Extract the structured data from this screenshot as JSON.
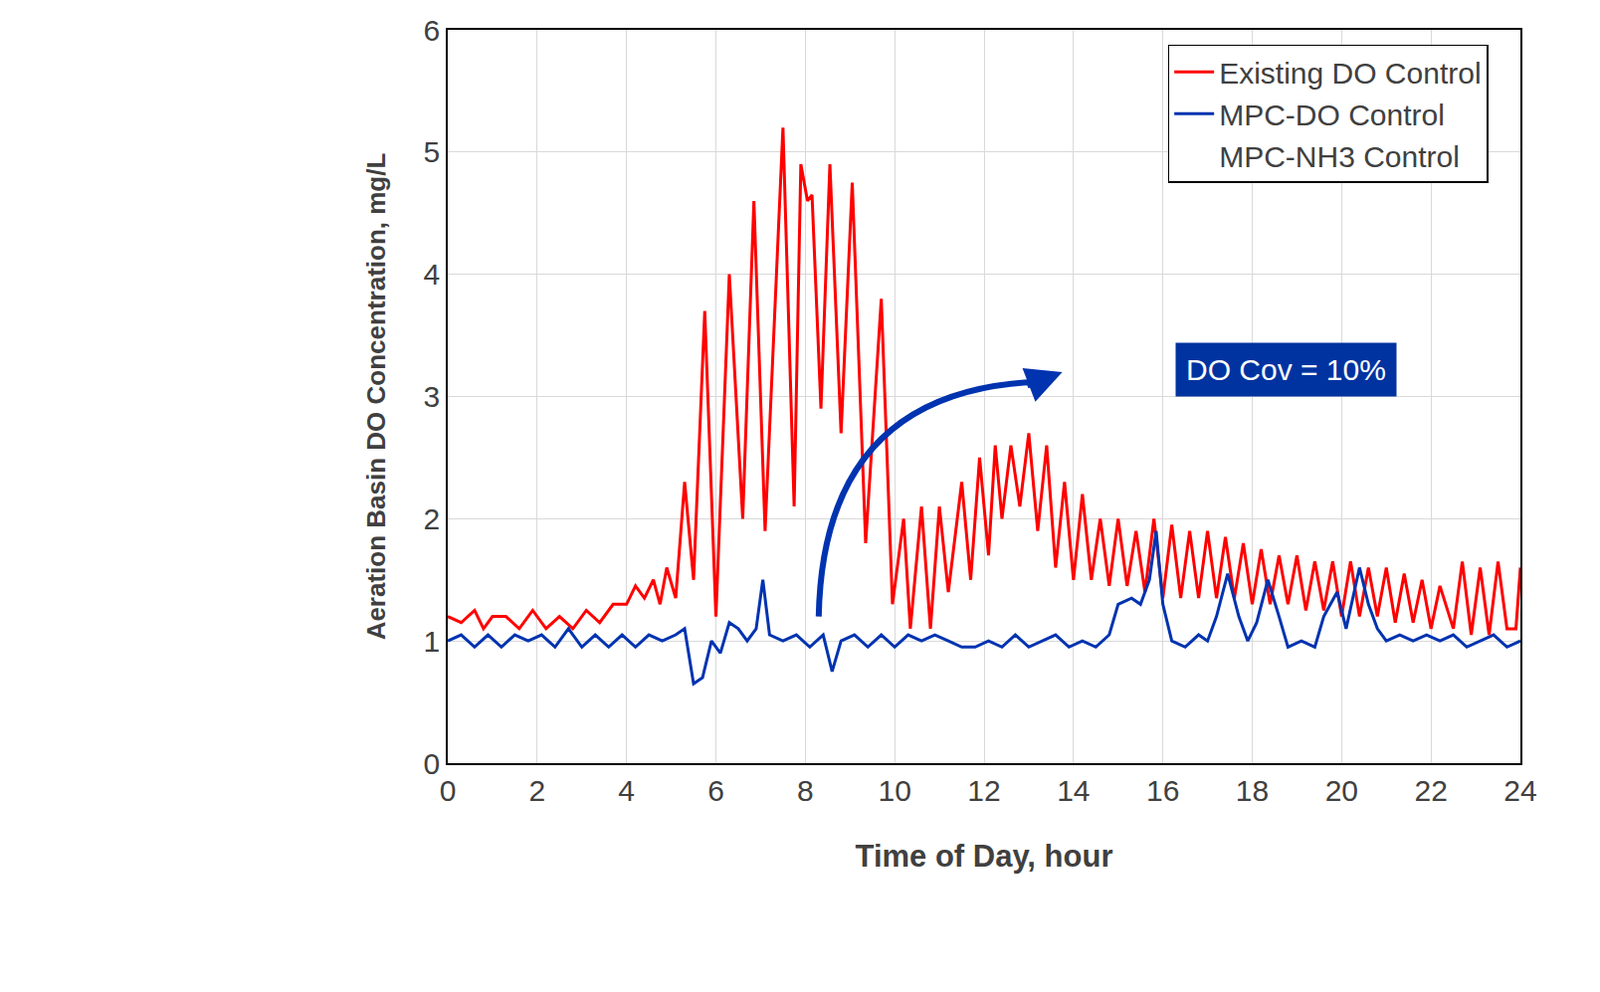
{
  "chart_data": {
    "type": "line",
    "xlabel": "Time of Day, hour",
    "ylabel": "Aeration Basin DO Concentration, mg/L",
    "xlim": [
      0,
      24
    ],
    "xticks": [
      0,
      2,
      4,
      6,
      8,
      10,
      12,
      14,
      16,
      18,
      20,
      22,
      24
    ],
    "ylim": [
      0,
      6
    ],
    "yticks": [
      0,
      1,
      2,
      3,
      4,
      5,
      6
    ],
    "grid": true,
    "legend": "top-right",
    "annotations": [
      {
        "text": "DO Cov = 10%",
        "x": 18.75,
        "y": 3.22
      }
    ],
    "series": [
      {
        "name": "Existing DO Control",
        "color": "#ff0000",
        "x": [
          0,
          0.3,
          0.6,
          0.8,
          1.0,
          1.3,
          1.6,
          1.9,
          2.2,
          2.5,
          2.8,
          3.1,
          3.4,
          3.7,
          4.0,
          4.2,
          4.4,
          4.6,
          4.75,
          4.9,
          5.1,
          5.3,
          5.5,
          5.75,
          6.0,
          6.3,
          6.6,
          6.85,
          7.1,
          7.5,
          7.75,
          7.9,
          8.05,
          8.15,
          8.35,
          8.55,
          8.8,
          9.05,
          9.35,
          9.7,
          9.95,
          10.2,
          10.35,
          10.6,
          10.8,
          11.0,
          11.2,
          11.5,
          11.7,
          11.9,
          12.1,
          12.25,
          12.4,
          12.6,
          12.8,
          13.0,
          13.2,
          13.4,
          13.6,
          13.8,
          14.0,
          14.2,
          14.4,
          14.6,
          14.8,
          15.0,
          15.2,
          15.4,
          15.6,
          15.8,
          16.0,
          16.2,
          16.4,
          16.6,
          16.8,
          17.0,
          17.2,
          17.4,
          17.6,
          17.8,
          18.0,
          18.2,
          18.4,
          18.6,
          18.8,
          19.0,
          19.2,
          19.4,
          19.6,
          19.8,
          20.0,
          20.2,
          20.4,
          20.6,
          20.8,
          21.0,
          21.2,
          21.4,
          21.6,
          21.8,
          22.0,
          22.2,
          22.5,
          22.7,
          22.9,
          23.1,
          23.3,
          23.5,
          23.7,
          23.9,
          24.0
        ],
        "values": [
          1.2,
          1.15,
          1.25,
          1.1,
          1.2,
          1.2,
          1.1,
          1.25,
          1.1,
          1.2,
          1.1,
          1.25,
          1.15,
          1.3,
          1.3,
          1.45,
          1.35,
          1.5,
          1.3,
          1.6,
          1.35,
          2.3,
          1.5,
          3.7,
          1.2,
          4.0,
          2.0,
          4.6,
          1.9,
          5.2,
          2.1,
          4.9,
          4.6,
          4.65,
          2.9,
          4.9,
          2.7,
          4.75,
          1.8,
          3.8,
          1.3,
          2.0,
          1.1,
          2.1,
          1.1,
          2.1,
          1.4,
          2.3,
          1.5,
          2.5,
          1.7,
          2.6,
          2.0,
          2.6,
          2.1,
          2.7,
          1.9,
          2.6,
          1.6,
          2.3,
          1.5,
          2.2,
          1.5,
          2.0,
          1.45,
          2.0,
          1.45,
          1.9,
          1.4,
          2.0,
          1.35,
          1.95,
          1.35,
          1.9,
          1.35,
          1.9,
          1.35,
          1.85,
          1.35,
          1.8,
          1.3,
          1.75,
          1.3,
          1.7,
          1.3,
          1.7,
          1.25,
          1.65,
          1.25,
          1.65,
          1.2,
          1.65,
          1.2,
          1.6,
          1.2,
          1.6,
          1.15,
          1.55,
          1.15,
          1.5,
          1.1,
          1.45,
          1.1,
          1.65,
          1.05,
          1.6,
          1.05,
          1.65,
          1.1,
          1.1,
          1.6
        ]
      },
      {
        "name": "MPC-DO Control",
        "color": "#0033b0",
        "x": [
          0,
          0.3,
          0.6,
          0.9,
          1.2,
          1.5,
          1.8,
          2.1,
          2.4,
          2.7,
          3.0,
          3.3,
          3.6,
          3.9,
          4.2,
          4.5,
          4.8,
          5.1,
          5.3,
          5.5,
          5.7,
          5.9,
          6.1,
          6.3,
          6.5,
          6.7,
          6.9,
          7.05,
          7.2,
          7.5,
          7.8,
          8.1,
          8.4,
          8.6,
          8.8,
          9.1,
          9.4,
          9.7,
          10.0,
          10.3,
          10.6,
          10.9,
          11.2,
          11.5,
          11.8,
          12.1,
          12.4,
          12.7,
          13.0,
          13.3,
          13.6,
          13.9,
          14.2,
          14.5,
          14.8,
          15.0,
          15.3,
          15.5,
          15.7,
          15.85,
          16.0,
          16.2,
          16.5,
          16.8,
          17.0,
          17.2,
          17.45,
          17.7,
          17.9,
          18.1,
          18.35,
          18.6,
          18.8,
          19.1,
          19.4,
          19.6,
          19.9,
          20.1,
          20.4,
          20.6,
          20.8,
          21.0,
          21.3,
          21.6,
          21.9,
          22.2,
          22.5,
          22.8,
          23.1,
          23.4,
          23.7,
          24.0
        ],
        "values": [
          1.0,
          1.05,
          0.95,
          1.05,
          0.95,
          1.05,
          1.0,
          1.05,
          0.95,
          1.1,
          0.95,
          1.05,
          0.95,
          1.05,
          0.95,
          1.05,
          1.0,
          1.05,
          1.1,
          0.65,
          0.7,
          1.0,
          0.9,
          1.15,
          1.1,
          1.0,
          1.1,
          1.5,
          1.05,
          1.0,
          1.05,
          0.95,
          1.05,
          0.75,
          1.0,
          1.05,
          0.95,
          1.05,
          0.95,
          1.05,
          1.0,
          1.05,
          1.0,
          0.95,
          0.95,
          1.0,
          0.95,
          1.05,
          0.95,
          1.0,
          1.05,
          0.95,
          1.0,
          0.95,
          1.05,
          1.3,
          1.35,
          1.3,
          1.5,
          1.9,
          1.3,
          1.0,
          0.95,
          1.05,
          1.0,
          1.2,
          1.55,
          1.2,
          1.0,
          1.15,
          1.5,
          1.2,
          0.95,
          1.0,
          0.95,
          1.2,
          1.4,
          1.1,
          1.6,
          1.3,
          1.1,
          1.0,
          1.05,
          1.0,
          1.05,
          1.0,
          1.05,
          0.95,
          1.0,
          1.05,
          0.95,
          1.0
        ]
      },
      {
        "name": "MPC-NH3 Control",
        "x": [],
        "values": []
      }
    ]
  }
}
